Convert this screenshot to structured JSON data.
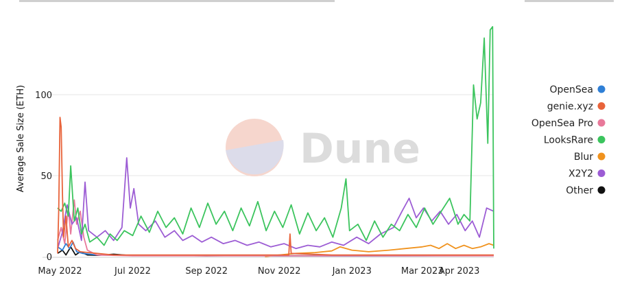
{
  "watermark": {
    "text": "Dune"
  },
  "chart_data": {
    "type": "line",
    "title": "",
    "xlabel": "",
    "ylabel": "Average Sale Size (ETH)",
    "ylim": [
      0,
      150
    ],
    "y_ticks": [
      0,
      50,
      100
    ],
    "x_range": [
      "2022-04-29",
      "2023-04-30"
    ],
    "x_ticks": [
      {
        "date": "2022-05-01",
        "label": "May 2022"
      },
      {
        "date": "2022-07-01",
        "label": "Jul 2022"
      },
      {
        "date": "2022-09-01",
        "label": "Sep 2022"
      },
      {
        "date": "2022-11-01",
        "label": "Nov 2022"
      },
      {
        "date": "2023-01-01",
        "label": "Jan 2023"
      },
      {
        "date": "2023-03-01",
        "label": "Mar 2023"
      },
      {
        "date": "2023-04-01",
        "label": "Apr 2023"
      }
    ],
    "grid": "horizontal",
    "legend_position": "right",
    "series": [
      {
        "name": "OpenSea",
        "color": "#2f7fd6",
        "points": [
          [
            "2022-04-29",
            6
          ],
          [
            "2022-05-03",
            4
          ],
          [
            "2022-05-06",
            8
          ],
          [
            "2022-05-09",
            5
          ],
          [
            "2022-05-12",
            9
          ],
          [
            "2022-05-15",
            3
          ],
          [
            "2022-05-20",
            2
          ],
          [
            "2022-06-01",
            1
          ],
          [
            "2022-07-01",
            0.8
          ],
          [
            "2022-09-01",
            0.6
          ],
          [
            "2022-11-01",
            0.5
          ],
          [
            "2023-01-01",
            0.4
          ],
          [
            "2023-03-01",
            0.5
          ],
          [
            "2023-04-30",
            0.6
          ]
        ]
      },
      {
        "name": "genie.xyz",
        "color": "#e8633a",
        "points": [
          [
            "2022-04-29",
            2
          ],
          [
            "2022-04-30",
            30
          ],
          [
            "2022-05-01",
            86
          ],
          [
            "2022-05-02",
            80
          ],
          [
            "2022-05-03",
            40
          ],
          [
            "2022-05-04",
            12
          ],
          [
            "2022-05-06",
            25
          ],
          [
            "2022-05-08",
            6
          ],
          [
            "2022-05-11",
            10
          ],
          [
            "2022-05-14",
            5
          ],
          [
            "2022-05-18",
            3
          ],
          [
            "2022-06-01",
            2
          ],
          [
            "2022-06-15",
            1
          ],
          [
            "2022-07-15",
            1
          ],
          [
            "2022-08-15",
            1
          ],
          [
            "2022-09-15",
            1
          ],
          [
            "2022-10-15",
            1
          ],
          [
            "2022-11-09",
            1
          ],
          [
            "2022-11-10",
            14
          ],
          [
            "2022-11-11",
            2
          ],
          [
            "2022-12-15",
            1
          ],
          [
            "2023-02-15",
            1
          ],
          [
            "2023-04-30",
            1
          ]
        ]
      },
      {
        "name": "OpenSea Pro",
        "color": "#e8799a",
        "points": [
          [
            "2022-04-29",
            10
          ],
          [
            "2022-05-02",
            18
          ],
          [
            "2022-05-05",
            8
          ],
          [
            "2022-05-08",
            30
          ],
          [
            "2022-05-10",
            14
          ],
          [
            "2022-05-13",
            35
          ],
          [
            "2022-05-15",
            20
          ],
          [
            "2022-05-18",
            28
          ],
          [
            "2022-05-21",
            12
          ],
          [
            "2022-05-24",
            4
          ],
          [
            "2022-06-01",
            1
          ],
          [
            "2022-07-01",
            0.5
          ],
          [
            "2023-04-30",
            0.5
          ]
        ]
      },
      {
        "name": "LooksRare",
        "color": "#3bc45d",
        "points": [
          [
            "2022-04-29",
            30
          ],
          [
            "2022-05-02",
            28
          ],
          [
            "2022-05-05",
            33
          ],
          [
            "2022-05-08",
            25
          ],
          [
            "2022-05-10",
            56
          ],
          [
            "2022-05-13",
            22
          ],
          [
            "2022-05-16",
            30
          ],
          [
            "2022-05-19",
            14
          ],
          [
            "2022-05-22",
            20
          ],
          [
            "2022-05-26",
            9
          ],
          [
            "2022-06-01",
            12
          ],
          [
            "2022-06-07",
            7
          ],
          [
            "2022-06-12",
            14
          ],
          [
            "2022-06-18",
            10
          ],
          [
            "2022-06-24",
            16
          ],
          [
            "2022-07-01",
            13
          ],
          [
            "2022-07-08",
            25
          ],
          [
            "2022-07-15",
            15
          ],
          [
            "2022-07-22",
            28
          ],
          [
            "2022-07-29",
            18
          ],
          [
            "2022-08-05",
            24
          ],
          [
            "2022-08-12",
            14
          ],
          [
            "2022-08-19",
            30
          ],
          [
            "2022-08-26",
            18
          ],
          [
            "2022-09-02",
            33
          ],
          [
            "2022-09-09",
            20
          ],
          [
            "2022-09-16",
            28
          ],
          [
            "2022-09-23",
            16
          ],
          [
            "2022-09-30",
            30
          ],
          [
            "2022-10-07",
            19
          ],
          [
            "2022-10-14",
            34
          ],
          [
            "2022-10-21",
            16
          ],
          [
            "2022-10-28",
            28
          ],
          [
            "2022-11-04",
            18
          ],
          [
            "2022-11-11",
            32
          ],
          [
            "2022-11-18",
            14
          ],
          [
            "2022-11-25",
            27
          ],
          [
            "2022-12-02",
            16
          ],
          [
            "2022-12-09",
            24
          ],
          [
            "2022-12-16",
            12
          ],
          [
            "2022-12-23",
            30
          ],
          [
            "2022-12-27",
            48
          ],
          [
            "2022-12-30",
            16
          ],
          [
            "2023-01-06",
            20
          ],
          [
            "2023-01-13",
            10
          ],
          [
            "2023-01-20",
            22
          ],
          [
            "2023-01-27",
            12
          ],
          [
            "2023-02-03",
            20
          ],
          [
            "2023-02-10",
            16
          ],
          [
            "2023-02-17",
            26
          ],
          [
            "2023-02-24",
            18
          ],
          [
            "2023-03-03",
            30
          ],
          [
            "2023-03-10",
            20
          ],
          [
            "2023-03-17",
            28
          ],
          [
            "2023-03-24",
            36
          ],
          [
            "2023-03-31",
            20
          ],
          [
            "2023-04-05",
            26
          ],
          [
            "2023-04-10",
            22
          ],
          [
            "2023-04-13",
            106
          ],
          [
            "2023-04-16",
            85
          ],
          [
            "2023-04-19",
            95
          ],
          [
            "2023-04-22",
            135
          ],
          [
            "2023-04-25",
            70
          ],
          [
            "2023-04-27",
            140
          ],
          [
            "2023-04-29",
            142
          ],
          [
            "2023-04-30",
            5
          ]
        ]
      },
      {
        "name": "Blur",
        "color": "#f0921d",
        "points": [
          [
            "2022-10-20",
            0
          ],
          [
            "2022-11-01",
            1
          ],
          [
            "2022-11-15",
            2
          ],
          [
            "2022-12-01",
            2.5
          ],
          [
            "2022-12-15",
            3.5
          ],
          [
            "2022-12-22",
            6
          ],
          [
            "2023-01-01",
            4
          ],
          [
            "2023-01-15",
            3
          ],
          [
            "2023-02-01",
            4
          ],
          [
            "2023-02-15",
            5
          ],
          [
            "2023-03-01",
            6
          ],
          [
            "2023-03-08",
            7
          ],
          [
            "2023-03-15",
            5
          ],
          [
            "2023-03-22",
            8
          ],
          [
            "2023-03-29",
            5
          ],
          [
            "2023-04-05",
            7
          ],
          [
            "2023-04-12",
            5
          ],
          [
            "2023-04-19",
            6
          ],
          [
            "2023-04-26",
            8
          ],
          [
            "2023-04-30",
            7
          ]
        ]
      },
      {
        "name": "X2Y2",
        "color": "#9c5cd4",
        "points": [
          [
            "2022-04-29",
            5
          ],
          [
            "2022-05-03",
            15
          ],
          [
            "2022-05-07",
            32
          ],
          [
            "2022-05-11",
            20
          ],
          [
            "2022-05-15",
            24
          ],
          [
            "2022-05-19",
            10
          ],
          [
            "2022-05-22",
            46
          ],
          [
            "2022-05-25",
            16
          ],
          [
            "2022-06-01",
            12
          ],
          [
            "2022-06-08",
            16
          ],
          [
            "2022-06-15",
            10
          ],
          [
            "2022-06-22",
            18
          ],
          [
            "2022-06-26",
            61
          ],
          [
            "2022-06-29",
            30
          ],
          [
            "2022-07-02",
            42
          ],
          [
            "2022-07-06",
            20
          ],
          [
            "2022-07-12",
            16
          ],
          [
            "2022-07-20",
            22
          ],
          [
            "2022-07-28",
            12
          ],
          [
            "2022-08-05",
            16
          ],
          [
            "2022-08-12",
            10
          ],
          [
            "2022-08-20",
            13
          ],
          [
            "2022-08-28",
            9
          ],
          [
            "2022-09-05",
            12
          ],
          [
            "2022-09-15",
            8
          ],
          [
            "2022-09-25",
            10
          ],
          [
            "2022-10-05",
            7
          ],
          [
            "2022-10-15",
            9
          ],
          [
            "2022-10-25",
            6
          ],
          [
            "2022-11-05",
            8
          ],
          [
            "2022-11-15",
            5
          ],
          [
            "2022-11-25",
            7
          ],
          [
            "2022-12-05",
            6
          ],
          [
            "2022-12-15",
            9
          ],
          [
            "2022-12-25",
            7
          ],
          [
            "2023-01-05",
            12
          ],
          [
            "2023-01-15",
            8
          ],
          [
            "2023-01-25",
            14
          ],
          [
            "2023-02-05",
            18
          ],
          [
            "2023-02-12",
            28
          ],
          [
            "2023-02-18",
            36
          ],
          [
            "2023-02-24",
            24
          ],
          [
            "2023-03-02",
            30
          ],
          [
            "2023-03-09",
            22
          ],
          [
            "2023-03-16",
            28
          ],
          [
            "2023-03-23",
            20
          ],
          [
            "2023-03-30",
            26
          ],
          [
            "2023-04-06",
            16
          ],
          [
            "2023-04-12",
            22
          ],
          [
            "2023-04-18",
            12
          ],
          [
            "2023-04-24",
            30
          ],
          [
            "2023-04-30",
            28
          ]
        ]
      },
      {
        "name": "Other",
        "color": "#111111",
        "points": [
          [
            "2022-04-29",
            2
          ],
          [
            "2022-05-03",
            4
          ],
          [
            "2022-05-06",
            1
          ],
          [
            "2022-05-10",
            6
          ],
          [
            "2022-05-14",
            1
          ],
          [
            "2022-05-18",
            3
          ],
          [
            "2022-05-24",
            1
          ],
          [
            "2022-06-01",
            0.8
          ],
          [
            "2022-06-15",
            1.5
          ],
          [
            "2022-07-01",
            0.6
          ],
          [
            "2022-08-01",
            0.8
          ],
          [
            "2022-09-01",
            0.5
          ],
          [
            "2022-10-01",
            0.7
          ],
          [
            "2022-11-01",
            0.5
          ],
          [
            "2022-12-01",
            0.6
          ],
          [
            "2023-01-01",
            0.5
          ],
          [
            "2023-02-01",
            0.6
          ],
          [
            "2023-03-01",
            0.7
          ],
          [
            "2023-04-01",
            0.6
          ],
          [
            "2023-04-30",
            0.8
          ]
        ]
      }
    ]
  }
}
